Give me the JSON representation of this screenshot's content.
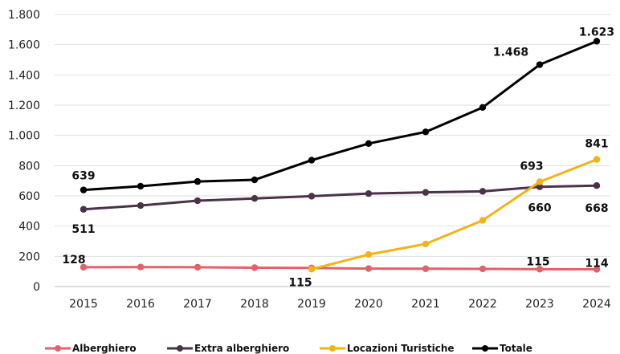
{
  "chart_data": {
    "type": "line",
    "x": [
      "2015",
      "2016",
      "2017",
      "2018",
      "2019",
      "2020",
      "2021",
      "2022",
      "2023",
      "2024"
    ],
    "ylim": [
      0,
      1800
    ],
    "yticks": [
      0,
      200,
      400,
      600,
      800,
      1000,
      1200,
      1400,
      1600,
      1800
    ],
    "ytick_labels": [
      "0",
      "200",
      "400",
      "600",
      "800",
      "1.000",
      "1.200",
      "1.400",
      "1.600",
      "1.800"
    ],
    "grid": "horizontal",
    "legend_position": "bottom",
    "series": [
      {
        "name": "Alberghiero",
        "color": "#e0626a",
        "values": [
          128,
          129,
          128,
          125,
          123,
          119,
          118,
          117,
          115,
          114
        ],
        "labels": [
          {
            "index": 0,
            "text": "128"
          },
          {
            "index": 8,
            "text": "115"
          },
          {
            "index": 9,
            "text": "114"
          }
        ]
      },
      {
        "name": "Extra alberghiero",
        "color": "#4a3349",
        "values": [
          511,
          536,
          568,
          583,
          598,
          615,
          623,
          630,
          660,
          668
        ],
        "labels": [
          {
            "index": 0,
            "text": "511"
          },
          {
            "index": 8,
            "text": "660"
          },
          {
            "index": 9,
            "text": "668"
          }
        ]
      },
      {
        "name": "Locazioni Turistiche",
        "color": "#f2b316",
        "values": [
          null,
          null,
          null,
          null,
          115,
          212,
          282,
          438,
          693,
          841
        ],
        "labels": [
          {
            "index": 4,
            "text": "115"
          },
          {
            "index": 8,
            "text": "693"
          },
          {
            "index": 9,
            "text": "841"
          }
        ]
      },
      {
        "name": "Totale",
        "color": "#000000",
        "values": [
          639,
          664,
          695,
          706,
          836,
          946,
          1023,
          1185,
          1468,
          1623
        ],
        "labels": [
          {
            "index": 0,
            "text": "639"
          },
          {
            "index": 8,
            "text": "1.468"
          },
          {
            "index": 9,
            "text": "1.623"
          }
        ]
      }
    ]
  }
}
